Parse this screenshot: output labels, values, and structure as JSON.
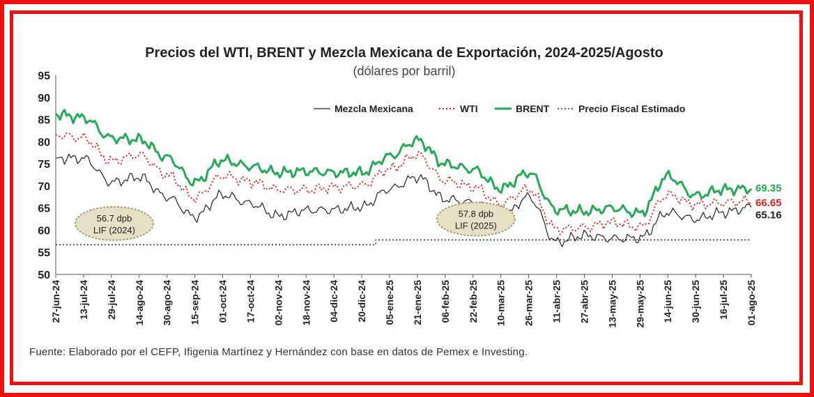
{
  "chart_data": {
    "type": "line",
    "title": "Precios del WTI, BRENT  y Mezcla Mexicana de Exportación, 2024-2025/Agosto",
    "subtitle": "(dólares por barril)",
    "ylim": [
      50,
      95
    ],
    "yticks": [
      "95",
      "90",
      "85",
      "80",
      "75",
      "70",
      "65",
      "60",
      "55",
      "50"
    ],
    "grid": false,
    "legend_position": "top-right",
    "x": [
      "27-jun-24",
      "13-jul-24",
      "29-jul-24",
      "14-ago-24",
      "30-ago-24",
      "15-sep-24",
      "01-oct-24",
      "17-oct-24",
      "02-nov-24",
      "18-nov-24",
      "04-dic-24",
      "20-dic-24",
      "05-ene-25",
      "21-ene-25",
      "06-feb-25",
      "22-feb-25",
      "10-mar-25",
      "26-mar-25",
      "11-abr-25",
      "27-abr-25",
      "13-may-25",
      "29-may-25",
      "14-jun-25",
      "30-jun-25",
      "16-jul-25",
      "01-ago-25"
    ],
    "series": [
      {
        "name": "Mezcla Mexicana",
        "color": "#222222",
        "values": [
          76.3,
          76.2,
          70.8,
          72.0,
          67.5,
          63.0,
          68.0,
          66.0,
          63.2,
          64.5,
          64.6,
          65.2,
          69.3,
          72.0,
          67.0,
          66.2,
          62.6,
          67.5,
          57.3,
          58.8,
          58.1,
          58.2,
          64.0,
          62.5,
          64.0,
          65.16
        ],
        "last_label": "65.16"
      },
      {
        "name": "WTI",
        "color": "#e22222",
        "values": [
          81.6,
          80.8,
          75.6,
          77.0,
          72.5,
          67.3,
          72.3,
          71.0,
          69.2,
          69.1,
          69.7,
          70.1,
          73.8,
          77.0,
          71.2,
          69.8,
          66.0,
          69.3,
          60.2,
          60.6,
          61.8,
          60.7,
          68.0,
          65.8,
          66.2,
          66.65
        ],
        "last_label": "66.65"
      },
      {
        "name": "BRENT",
        "color": "#22aa55",
        "values": [
          86.2,
          85.4,
          80.8,
          80.5,
          76.4,
          70.8,
          75.8,
          74.4,
          73.0,
          73.3,
          73.0,
          73.0,
          76.7,
          80.3,
          74.9,
          73.7,
          69.4,
          73.0,
          64.6,
          64.2,
          65.0,
          63.8,
          72.2,
          67.8,
          69.2,
          69.35
        ],
        "last_label": "69.35"
      },
      {
        "name": "Precio Fiscal Estimado",
        "color": "#333333",
        "values": [
          56.7,
          56.7,
          56.7,
          56.7,
          56.7,
          56.7,
          56.7,
          56.7,
          56.7,
          56.7,
          56.7,
          56.7,
          57.8,
          57.8,
          57.8,
          57.8,
          57.8,
          57.8,
          57.8,
          57.8,
          57.8,
          57.8,
          57.8,
          57.8,
          57.8,
          57.8
        ]
      }
    ],
    "annotations": [
      {
        "line1": "56.7 dpb",
        "line2": "LIF (2024)",
        "x": "13-jul-24",
        "y": 61.5
      },
      {
        "line1": "57.8 dpb",
        "line2": "LIF (2025)",
        "x": "06-feb-25",
        "y": 62.5
      }
    ]
  },
  "source_note": "Fuente: Elaborado por el CEFP, Ifigenia Martínez y Hernández con base en datos de Pemex e Investing.",
  "colors": {
    "frame": "#ee1111",
    "ellipse_fill": "#e6e1c6",
    "ellipse_stroke": "#a89f73"
  }
}
